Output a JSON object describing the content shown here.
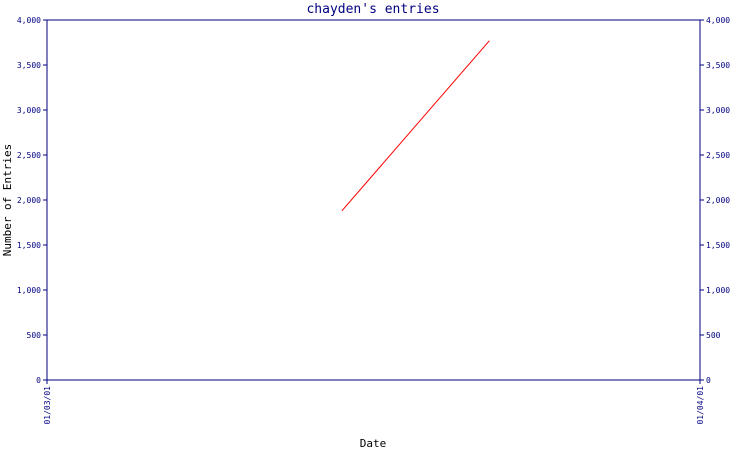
{
  "colors": {
    "axis": "#000080",
    "text": "#000080",
    "label": "#000000",
    "series": "#ff0000",
    "background": "#ffffff"
  },
  "chart_data": {
    "type": "line",
    "title": "chayden's entries",
    "xlabel": "Date",
    "ylabel": "Number of Entries",
    "xlim": [
      "2001-03-01",
      "2001-04-01"
    ],
    "ylim": [
      0,
      4000
    ],
    "x_ticks": [
      "01/03/01",
      "01/04/01"
    ],
    "y_ticks": [
      0,
      500,
      1000,
      1500,
      2000,
      2500,
      3000,
      3500,
      4000
    ],
    "y_tick_labels": [
      "0",
      "500",
      "1,000",
      "1,500",
      "2,000",
      "2,500",
      "3,000",
      "3,500",
      "4,000"
    ],
    "grid": false,
    "legend": "none",
    "series": [
      {
        "color": "#ff0000",
        "points": [
          {
            "x": "2001-03-15",
            "y": 1880
          },
          {
            "x": "2001-03-22",
            "y": 3770
          }
        ]
      }
    ]
  }
}
